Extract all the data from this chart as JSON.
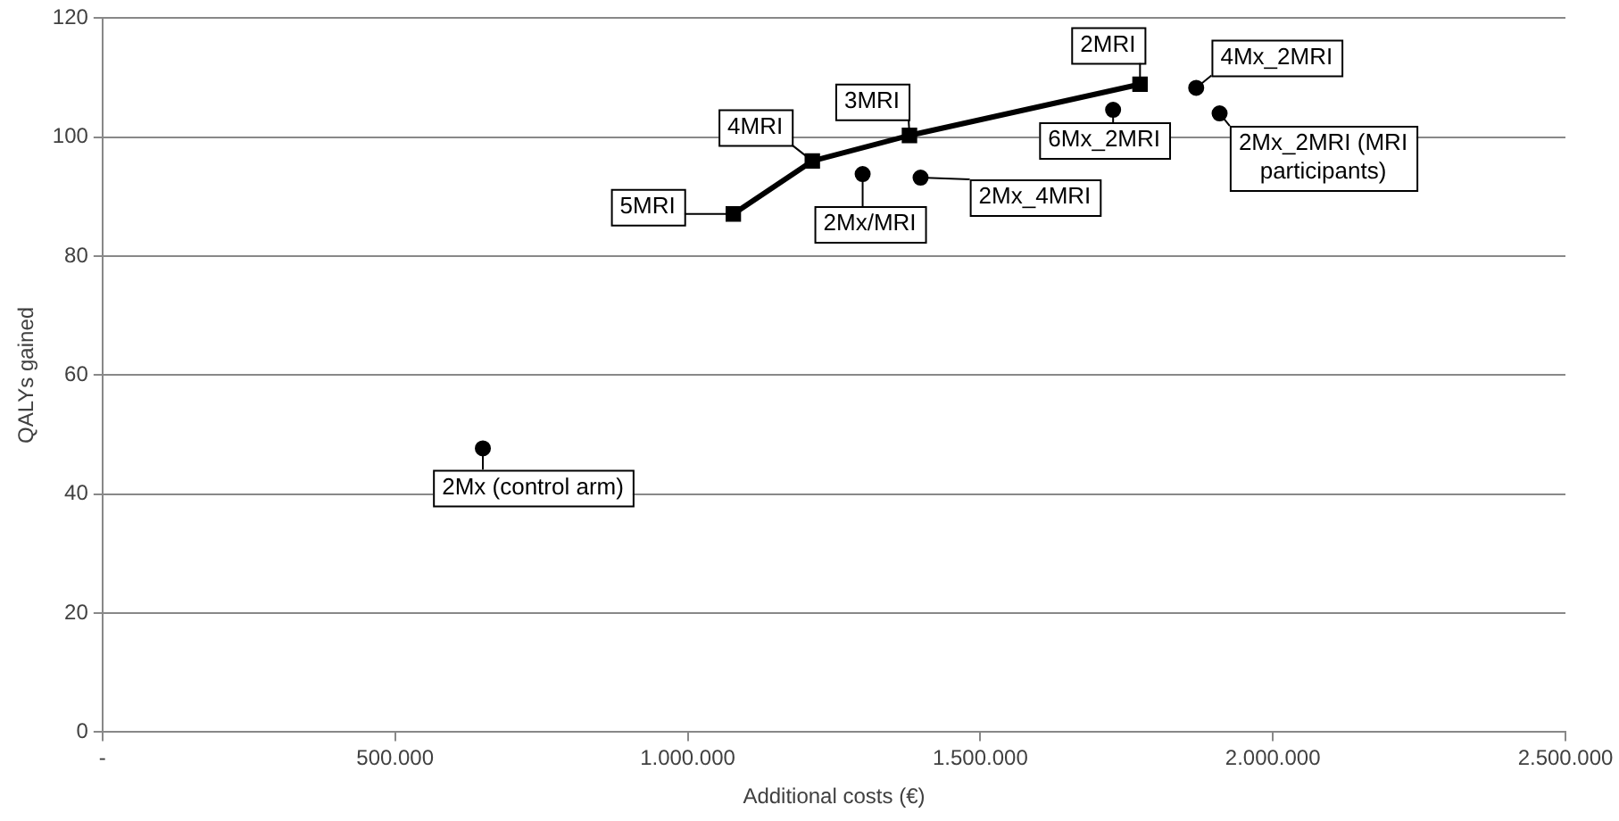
{
  "chart_data": {
    "type": "scatter",
    "xlabel": "Additional costs (€)",
    "ylabel": "QALYs gained",
    "xlim": [
      0,
      2500000
    ],
    "xticks": [
      {
        "value": 0,
        "label": "-"
      },
      {
        "value": 500000,
        "label": "500.000"
      },
      {
        "value": 1000000,
        "label": "1.000.000"
      },
      {
        "value": 1500000,
        "label": "1.500.000"
      },
      {
        "value": 2000000,
        "label": "2.000.000"
      },
      {
        "value": 2500000,
        "label": "2.500.000"
      }
    ],
    "ylim": [
      0,
      120
    ],
    "yticks": [
      0,
      20,
      40,
      60,
      80,
      100,
      120
    ],
    "grid": "y",
    "legend": false,
    "series": [
      {
        "type": "line",
        "color": "#000000",
        "marker": "square",
        "line_style": "solid",
        "x": [
          1078000,
          1213000,
          1379000,
          1773000
        ],
        "values": [
          87.1,
          96.0,
          100.3,
          108.9
        ]
      },
      {
        "type": "scatter",
        "color": "#000000",
        "marker": "circle",
        "x": [
          650000,
          1299000,
          1398000,
          1727000,
          1869000,
          1909000
        ],
        "values": [
          47.7,
          93.8,
          93.2,
          104.6,
          108.3,
          104.0
        ]
      }
    ],
    "annotations": [
      {
        "text": "5MRI",
        "x": 1078000,
        "y": 87.1
      },
      {
        "text": "4MRI",
        "x": 1213000,
        "y": 96.0
      },
      {
        "text": "3MRI",
        "x": 1379000,
        "y": 100.3
      },
      {
        "text": "2MRI",
        "x": 1773000,
        "y": 108.9
      },
      {
        "text": "2Mx (control arm)",
        "x": 650000,
        "y": 47.7
      },
      {
        "text": "2Mx/MRI",
        "x": 1299000,
        "y": 93.8
      },
      {
        "text": "2Mx_4MRI",
        "x": 1398000,
        "y": 93.2
      },
      {
        "text": "6Mx_2MRI",
        "x": 1727000,
        "y": 104.6
      },
      {
        "text": "4Mx_2MRI",
        "x": 1869000,
        "y": 108.3
      },
      {
        "text": "2Mx_2MRI (MRI participants)",
        "x": 1909000,
        "y": 104.0
      }
    ]
  }
}
